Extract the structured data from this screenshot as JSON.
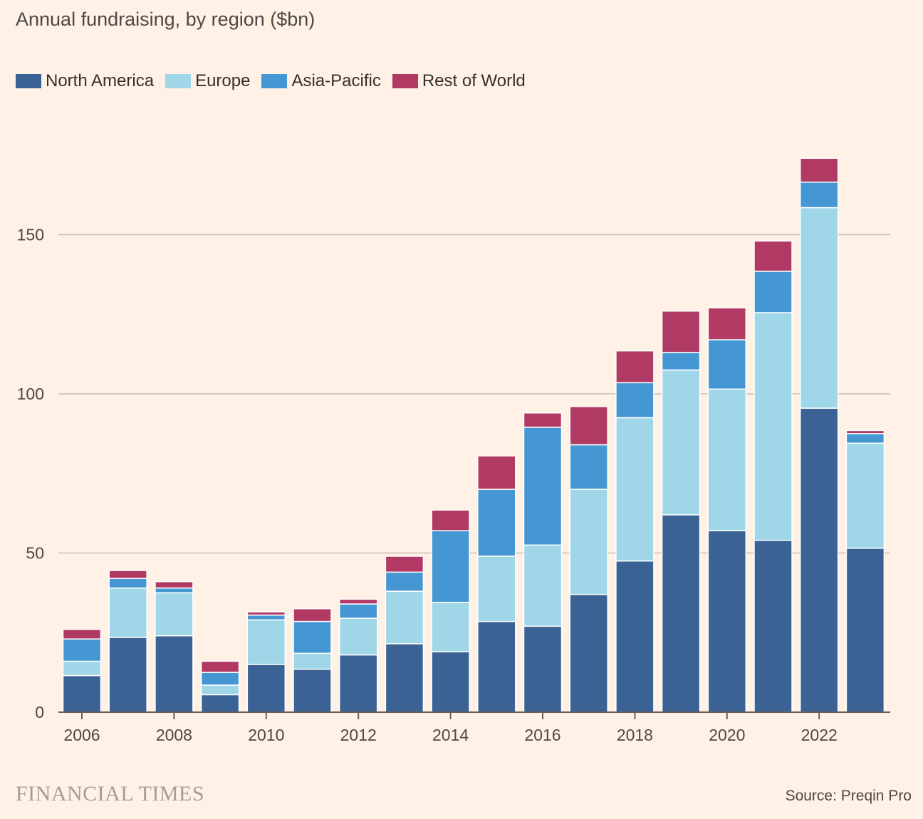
{
  "title": "Annual fundraising, by region ($bn)",
  "brand": "FINANCIAL TIMES",
  "source": "Source: Preqin Pro",
  "chart_data": {
    "type": "bar",
    "stacked": true,
    "categories": [
      "2006",
      "2007",
      "2008",
      "2009",
      "2010",
      "2011",
      "2012",
      "2013",
      "2014",
      "2015",
      "2016",
      "2017",
      "2018",
      "2019",
      "2020",
      "2021",
      "2022",
      "2023"
    ],
    "x_tick_labels": [
      "2006",
      "2008",
      "2010",
      "2012",
      "2014",
      "2016",
      "2018",
      "2020",
      "2022"
    ],
    "y_ticks": [
      0,
      50,
      100,
      150
    ],
    "ylim": [
      0,
      180
    ],
    "grid": true,
    "legend_position": "top-left",
    "series": [
      {
        "name": "North America",
        "color": "#3a6294",
        "values": [
          11.5,
          23.5,
          24,
          5.5,
          15,
          13.5,
          18,
          21.5,
          19,
          28.5,
          27,
          37,
          47.5,
          62,
          57,
          54,
          95.5,
          51.5
        ]
      },
      {
        "name": "Europe",
        "color": "#9fd6e8",
        "values": [
          4.5,
          15.5,
          13.5,
          3,
          14,
          5,
          11.5,
          16.5,
          15.5,
          20.5,
          25.5,
          33,
          45,
          45.5,
          44.5,
          71.5,
          63,
          33
        ]
      },
      {
        "name": "Asia-Pacific",
        "color": "#4497d2",
        "values": [
          7,
          3,
          1.5,
          4,
          1.5,
          10,
          4.5,
          6,
          22.5,
          21,
          37,
          14,
          11,
          5.5,
          15.5,
          13,
          8,
          3
        ]
      },
      {
        "name": "Rest of World",
        "color": "#b13a64",
        "values": [
          3,
          2.5,
          2,
          3.5,
          1,
          4,
          1.5,
          5,
          6.5,
          10.5,
          4.5,
          12,
          10,
          13,
          10,
          9.5,
          7.5,
          1
        ]
      }
    ]
  }
}
